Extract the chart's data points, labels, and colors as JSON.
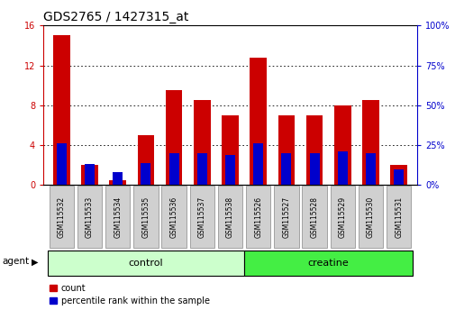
{
  "title": "GDS2765 / 1427315_at",
  "samples": [
    "GSM115532",
    "GSM115533",
    "GSM115534",
    "GSM115535",
    "GSM115536",
    "GSM115537",
    "GSM115538",
    "GSM115526",
    "GSM115527",
    "GSM115528",
    "GSM115529",
    "GSM115530",
    "GSM115531"
  ],
  "count_values": [
    15.0,
    2.0,
    0.5,
    5.0,
    9.5,
    8.5,
    7.0,
    12.8,
    7.0,
    7.0,
    8.0,
    8.5,
    2.0
  ],
  "percentile_values": [
    26,
    13,
    8,
    14,
    20,
    20,
    19,
    26,
    20,
    20,
    21,
    20,
    10
  ],
  "groups": [
    {
      "label": "control",
      "start": 0,
      "end": 7,
      "color": "#ccffcc"
    },
    {
      "label": "creatine",
      "start": 7,
      "end": 13,
      "color": "#44ee44"
    }
  ],
  "left_ylim": [
    0,
    16
  ],
  "right_ylim": [
    0,
    100
  ],
  "left_yticks": [
    0,
    4,
    8,
    12,
    16
  ],
  "right_yticks": [
    0,
    25,
    50,
    75,
    100
  ],
  "bar_width": 0.6,
  "blue_bar_width": 0.35,
  "count_color": "#cc0000",
  "percentile_color": "#0000cc",
  "bg_color": "#ffffff",
  "tick_label_bg": "#d0d0d0",
  "tick_label_edge": "#888888",
  "agent_label": "agent",
  "legend_count": "count",
  "legend_percentile": "percentile rank within the sample",
  "title_fontsize": 10,
  "tick_fontsize": 7,
  "label_fontsize": 8,
  "grid_color": "#000000",
  "right_tick_color": "#0000cc",
  "left_tick_color": "#cc0000"
}
